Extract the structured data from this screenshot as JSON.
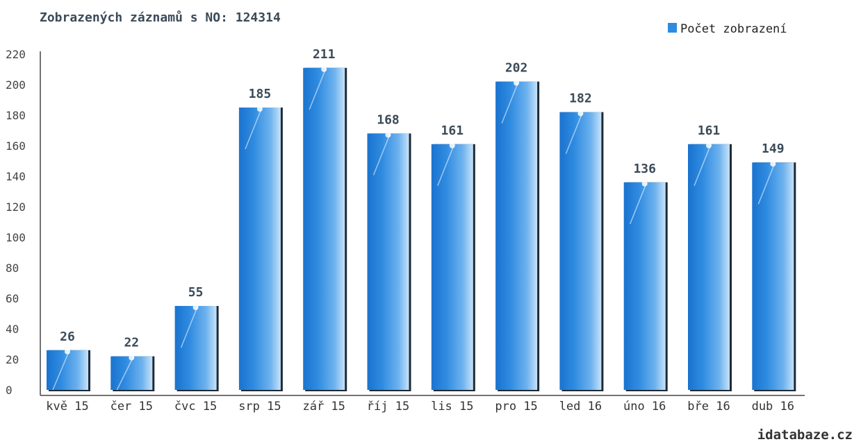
{
  "chart_data": {
    "type": "bar",
    "title": "Zobrazených záznamů s NO: 124314",
    "categories": [
      "kvě 15",
      "čer 15",
      "čvc 15",
      "srp 15",
      "zář 15",
      "říj 15",
      "lis 15",
      "pro 15",
      "led 16",
      "úno 16",
      "bře 16",
      "dub 16"
    ],
    "series": [
      {
        "name": "Počet zobrazení",
        "values": [
          26,
          22,
          55,
          185,
          211,
          168,
          161,
          202,
          182,
          136,
          161,
          149
        ]
      }
    ],
    "ylim": [
      0,
      220
    ],
    "yticks": [
      0,
      20,
      40,
      60,
      80,
      100,
      120,
      140,
      160,
      180,
      200,
      220
    ],
    "xlabel": "",
    "ylabel": "",
    "grid": false,
    "legend": "top-right",
    "color": "#2f8be0"
  },
  "credit": "idatabaze.cz"
}
